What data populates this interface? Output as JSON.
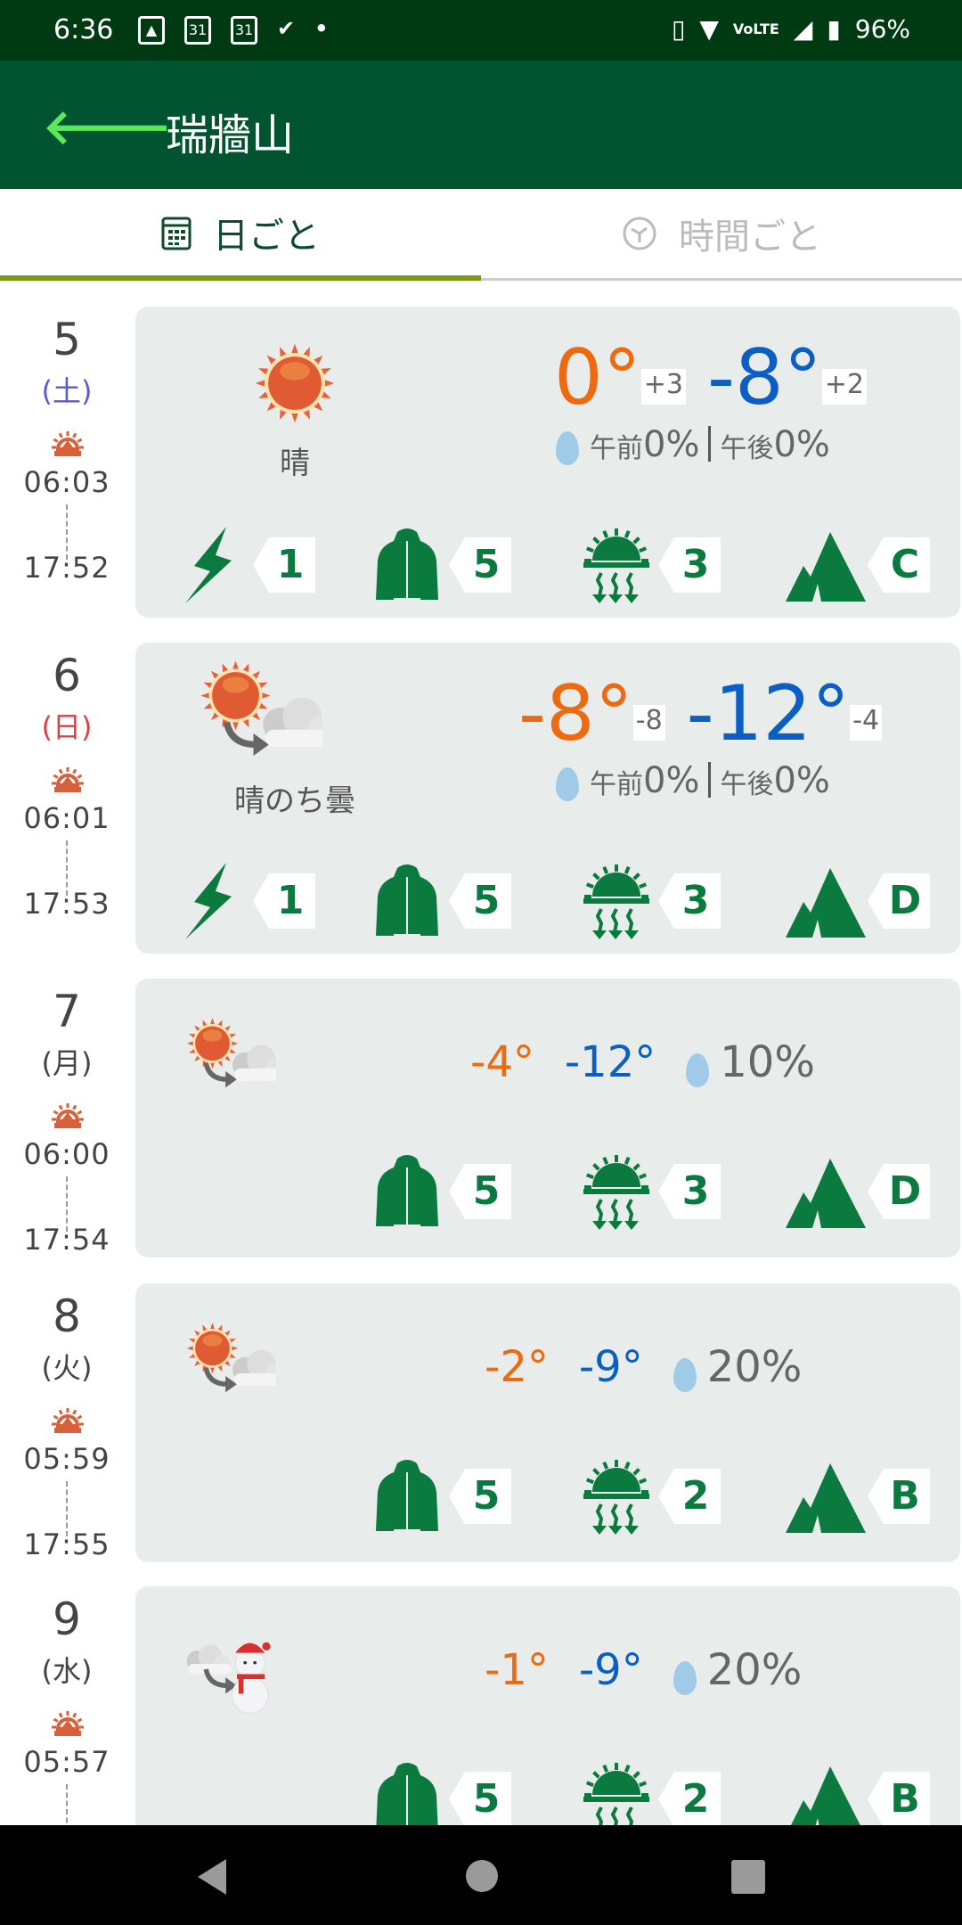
{
  "status": {
    "time": "6:36",
    "battery": "96%"
  },
  "appbar": {
    "title": "瑞牆山",
    "back_icon": "arrow-left-icon"
  },
  "tabs": [
    {
      "label": "日ごと",
      "icon": "calendar-icon",
      "active": true
    },
    {
      "label": "時間ごと",
      "icon": "clock-icon",
      "active": false
    }
  ],
  "colors": {
    "appbar": "#005530",
    "status": "#003a12",
    "high": "#ee6a10",
    "low": "#0b5fc4",
    "badge": "#0b7a3e",
    "card": "#e8ecea",
    "saturday": "#5a5ad8",
    "sunday": "#e04040"
  },
  "days": [
    {
      "date": "5",
      "weekday": "(土)",
      "wk_color": "#5a5ad8",
      "sunrise": "06:03",
      "sunset": "17:52",
      "weather": "sunny",
      "label": "晴",
      "high": "0°",
      "high_diff": "+3",
      "low": "-8°",
      "low_diff": "+2",
      "precip_am_label": "午前",
      "precip_am": "0%",
      "precip_pm_label": "午後",
      "precip_pm": "0%",
      "lightning": "1",
      "clothing": "5",
      "uv": "3",
      "climb": "C"
    },
    {
      "date": "6",
      "weekday": "(日)",
      "wk_color": "#e04040",
      "sunrise": "06:01",
      "sunset": "17:53",
      "weather": "sunny-then-cloudy",
      "label": "晴のち曇",
      "high": "-8°",
      "high_diff": "-8",
      "low": "-12°",
      "low_diff": "-4",
      "precip_am_label": "午前",
      "precip_am": "0%",
      "precip_pm_label": "午後",
      "precip_pm": "0%",
      "lightning": "1",
      "clothing": "5",
      "uv": "3",
      "climb": "D"
    },
    {
      "date": "7",
      "weekday": "(月)",
      "sunrise": "06:00",
      "sunset": "17:54",
      "weather": "sunny-then-cloudy",
      "high": "-4°",
      "low": "-12°",
      "precip": "10%",
      "clothing": "5",
      "uv": "3",
      "climb": "D"
    },
    {
      "date": "8",
      "weekday": "(火)",
      "sunrise": "05:59",
      "sunset": "17:55",
      "weather": "sunny-then-cloudy",
      "high": "-2°",
      "low": "-9°",
      "precip": "20%",
      "clothing": "5",
      "uv": "2",
      "climb": "B"
    },
    {
      "date": "9",
      "weekday": "(水)",
      "sunrise": "05:57",
      "weather": "cloudy-then-snow",
      "high": "-1°",
      "low": "-9°",
      "precip": "20%",
      "clothing": "5",
      "uv": "2",
      "climb": "B"
    }
  ]
}
